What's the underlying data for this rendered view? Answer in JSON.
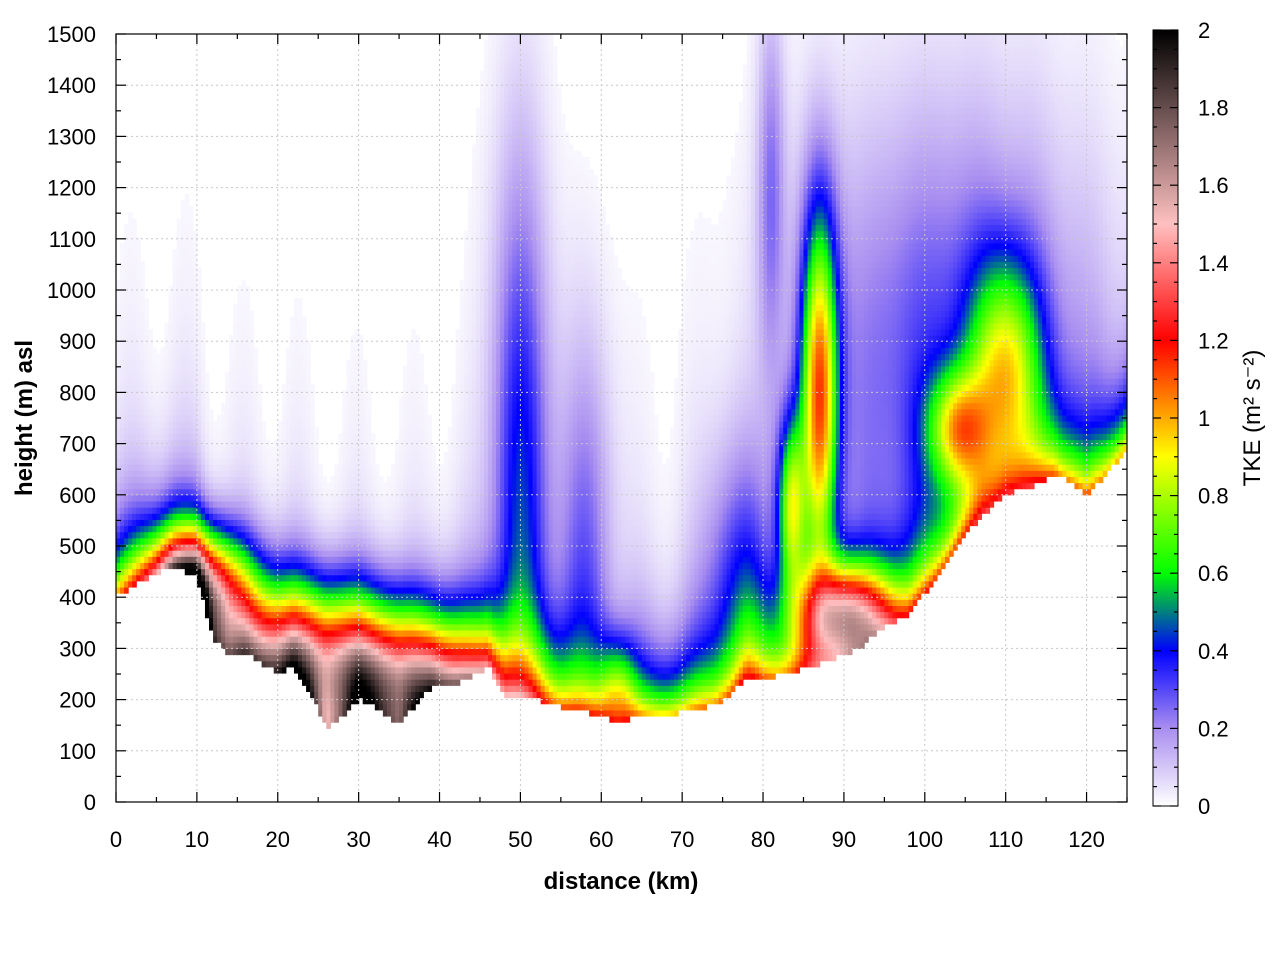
{
  "chart_data": {
    "type": "heatmap",
    "xlabel": "distance (km)",
    "ylabel": "height (m) asl",
    "xlim": [
      0,
      125
    ],
    "ylim": [
      0,
      1500
    ],
    "x_ticks": [
      "0",
      "10",
      "20",
      "30",
      "40",
      "50",
      "60",
      "70",
      "80",
      "90",
      "100",
      "110",
      "120"
    ],
    "y_ticks": [
      "0",
      "100",
      "200",
      "300",
      "400",
      "500",
      "600",
      "700",
      "800",
      "900",
      "1000",
      "1100",
      "1200",
      "1300",
      "1400",
      "1500"
    ],
    "grid": true,
    "colorbar": {
      "label": "TKE (m² s⁻²)",
      "range": [
        0,
        2
      ],
      "ticks": [
        "0",
        "0.2",
        "0.4",
        "0.6",
        "0.8",
        "1",
        "1.2",
        "1.4",
        "1.6",
        "1.8",
        "2"
      ],
      "colors": [
        "#ffffff",
        "#a98ef0",
        "#0000ff",
        "#00ff00",
        "#ffff00",
        "#ff0000",
        "#ffc0c0",
        "#000000"
      ]
    },
    "terrain_height_m": [
      [
        0,
        400
      ],
      [
        3,
        430
      ],
      [
        7,
        460
      ],
      [
        10,
        440
      ],
      [
        12,
        320
      ],
      [
        14,
        285
      ],
      [
        16,
        290
      ],
      [
        18,
        270
      ],
      [
        20,
        255
      ],
      [
        22,
        262
      ],
      [
        24,
        215
      ],
      [
        26,
        145
      ],
      [
        28,
        165
      ],
      [
        30,
        200
      ],
      [
        32,
        185
      ],
      [
        35,
        150
      ],
      [
        37,
        190
      ],
      [
        39,
        225
      ],
      [
        42,
        230
      ],
      [
        44,
        245
      ],
      [
        46,
        265
      ],
      [
        48,
        210
      ],
      [
        52,
        200
      ],
      [
        55,
        185
      ],
      [
        60,
        170
      ],
      [
        62,
        150
      ],
      [
        64,
        165
      ],
      [
        67,
        170
      ],
      [
        70,
        175
      ],
      [
        74,
        190
      ],
      [
        76,
        210
      ],
      [
        78,
        245
      ],
      [
        80,
        240
      ],
      [
        84,
        255
      ],
      [
        88,
        275
      ],
      [
        92,
        300
      ],
      [
        95,
        345
      ],
      [
        98,
        365
      ],
      [
        101,
        430
      ],
      [
        104,
        500
      ],
      [
        107,
        560
      ],
      [
        110,
        600
      ],
      [
        113,
        615
      ],
      [
        116,
        640
      ],
      [
        118,
        625
      ],
      [
        120,
        600
      ],
      [
        122,
        630
      ],
      [
        125,
        690
      ]
    ],
    "tke_features": [
      {
        "x": 10,
        "y": 420,
        "wx": 4,
        "wy": 80,
        "tke": 1.2
      },
      {
        "x": 22,
        "y": 300,
        "wx": 10,
        "wy": 100,
        "tke": 0.85
      },
      {
        "x": 35,
        "y": 230,
        "wx": 9,
        "wy": 90,
        "tke": 0.95
      },
      {
        "x": 50,
        "y": 600,
        "wx": 2.5,
        "wy": 450,
        "tke": 0.4
      },
      {
        "x": 58,
        "y": 500,
        "wx": 2.5,
        "wy": 300,
        "tke": 0.22
      },
      {
        "x": 62,
        "y": 220,
        "wx": 1.5,
        "wy": 70,
        "tke": 0.4
      },
      {
        "x": 77,
        "y": 400,
        "wx": 3,
        "wy": 200,
        "tke": 0.3
      },
      {
        "x": 81,
        "y": 1200,
        "wx": 1.2,
        "wy": 250,
        "tke": 0.22
      },
      {
        "x": 83.5,
        "y": 580,
        "wx": 1.2,
        "wy": 120,
        "tke": 0.7
      },
      {
        "x": 87,
        "y": 800,
        "wx": 1.6,
        "wy": 250,
        "tke": 1.0
      },
      {
        "x": 90,
        "y": 370,
        "wx": 4,
        "wy": 70,
        "tke": 1.1
      },
      {
        "x": 104,
        "y": 730,
        "wx": 2.5,
        "wy": 80,
        "tke": 0.65
      },
      {
        "x": 110,
        "y": 850,
        "wx": 3,
        "wy": 150,
        "tke": 0.65
      },
      {
        "x": 103,
        "y": 850,
        "wx": 12,
        "wy": 350,
        "tke": 0.3
      }
    ]
  }
}
